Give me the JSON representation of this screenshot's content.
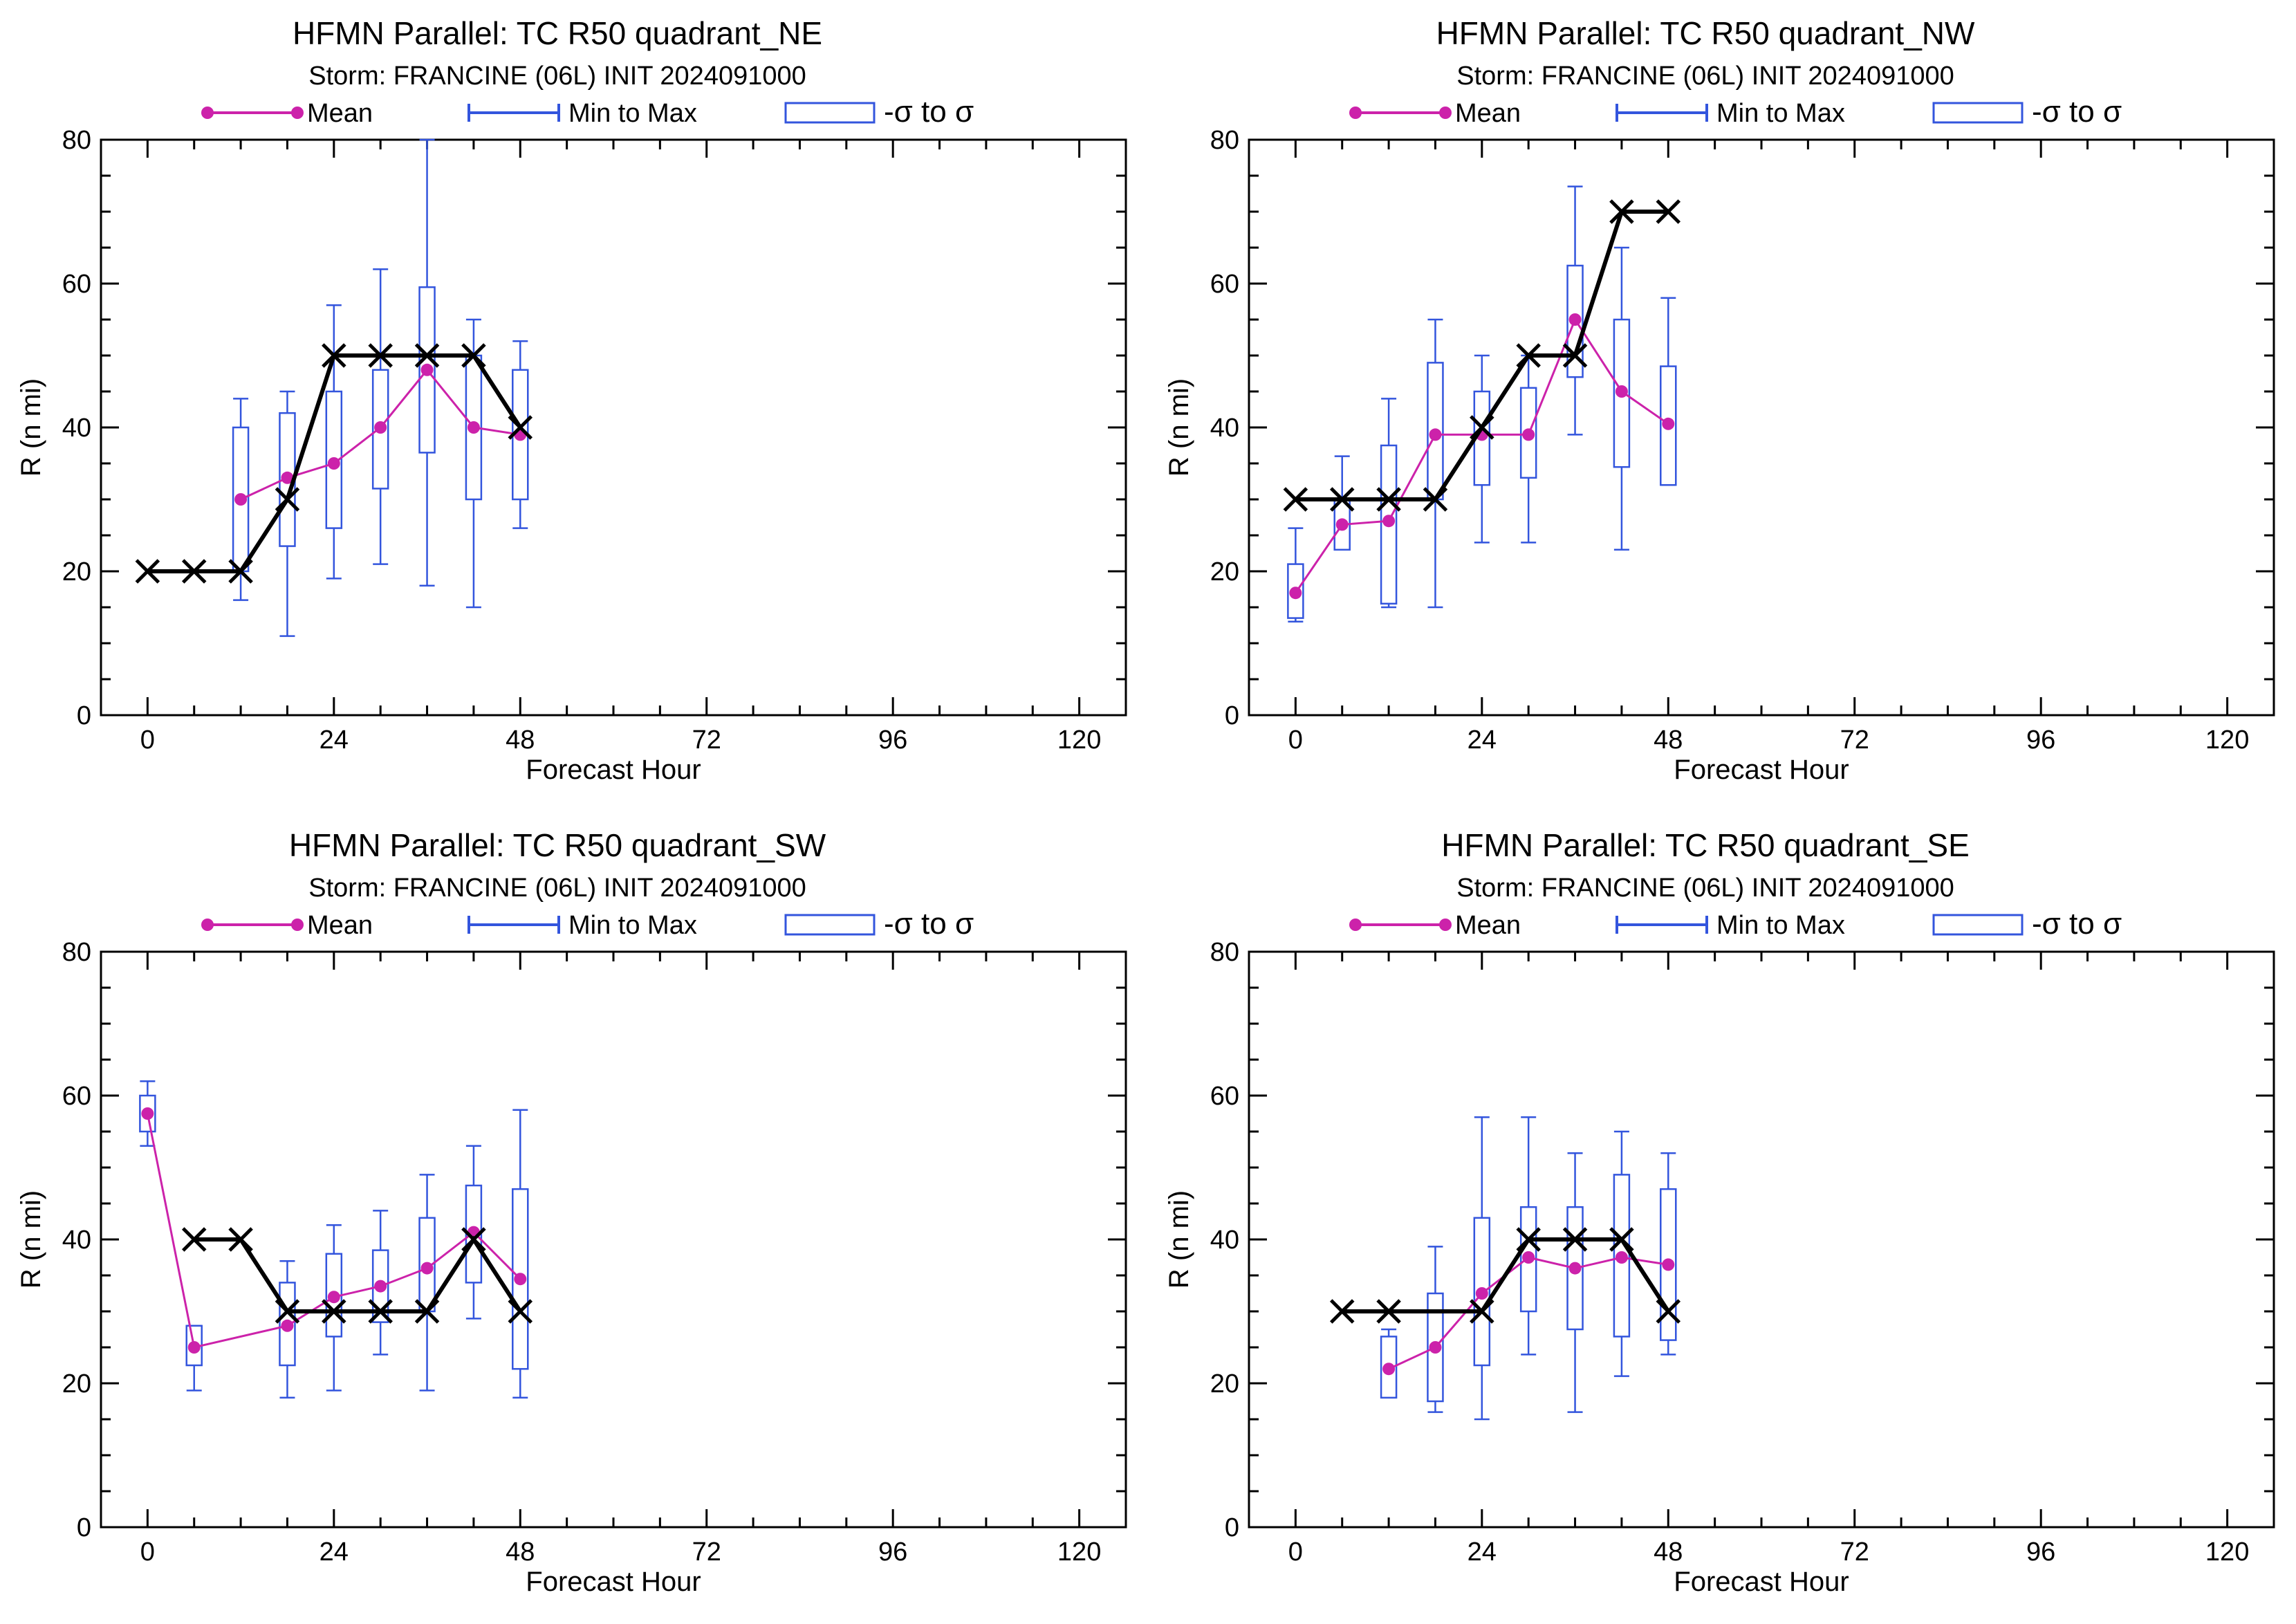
{
  "colors": {
    "mean": "#cc22aa",
    "range": "#3355dd",
    "best_track": "#000000",
    "axis": "#000000"
  },
  "legend": {
    "mean_label": "Mean",
    "range_label": "Min to Max",
    "sigma_label": "-σ to σ"
  },
  "chart_data": [
    {
      "type": "box",
      "title": "HFMN Parallel: TC  R50 quadrant_NE",
      "subtitle": "Storm: FRANCINE (06L) INIT 2024091000",
      "xlabel": "Forecast Hour",
      "ylabel": "R (n mi)",
      "xlim": [
        -6,
        126
      ],
      "ylim": [
        0,
        80
      ],
      "xticks": [
        0,
        24,
        48,
        72,
        96,
        120
      ],
      "yticks": [
        0,
        20,
        40,
        60,
        80
      ],
      "best_track": {
        "x": [
          0,
          6,
          12,
          18,
          24,
          30,
          36,
          42,
          48
        ],
        "y": [
          20,
          20,
          20,
          30,
          50,
          50,
          50,
          50,
          40
        ]
      },
      "ensemble": {
        "x": [
          12,
          18,
          24,
          30,
          36,
          42,
          48
        ],
        "mean": [
          30,
          33,
          35,
          40,
          48,
          40,
          39
        ],
        "min": [
          16,
          11,
          19,
          21,
          18,
          15,
          26
        ],
        "max": [
          44,
          45,
          57,
          62,
          80,
          55,
          52
        ],
        "sig_lo": [
          20,
          23.5,
          26,
          31.5,
          36.5,
          30,
          30
        ],
        "sig_hi": [
          40,
          42,
          45,
          48,
          59.5,
          50,
          48
        ]
      }
    },
    {
      "type": "box",
      "title": "HFMN Parallel: TC  R50 quadrant_NW",
      "subtitle": "Storm: FRANCINE (06L) INIT 2024091000",
      "xlabel": "Forecast Hour",
      "ylabel": "R (n mi)",
      "xlim": [
        -6,
        126
      ],
      "ylim": [
        0,
        80
      ],
      "xticks": [
        0,
        24,
        48,
        72,
        96,
        120
      ],
      "yticks": [
        0,
        20,
        40,
        60,
        80
      ],
      "best_track": {
        "x": [
          0,
          6,
          12,
          18,
          24,
          30,
          36,
          42,
          48
        ],
        "y": [
          30,
          30,
          30,
          30,
          40,
          50,
          50,
          70,
          70
        ]
      },
      "ensemble": {
        "x": [
          0,
          6,
          12,
          18,
          24,
          30,
          36,
          42,
          48
        ],
        "mean": [
          17,
          26.5,
          27,
          39,
          39,
          39,
          55,
          45,
          40.5
        ],
        "min": [
          13,
          23,
          15,
          15,
          24,
          24,
          39,
          23,
          32
        ],
        "max": [
          26,
          36,
          44,
          55,
          50,
          50,
          73.5,
          65,
          58
        ],
        "sig_lo": [
          13.5,
          23,
          15.5,
          30,
          32,
          33,
          47,
          34.5,
          32
        ],
        "sig_hi": [
          21,
          30,
          37.5,
          49,
          45,
          45.5,
          62.5,
          55,
          48.5
        ]
      }
    },
    {
      "type": "box",
      "title": "HFMN Parallel: TC  R50 quadrant_SW",
      "subtitle": "Storm: FRANCINE (06L) INIT 2024091000",
      "xlabel": "Forecast Hour",
      "ylabel": "R (n mi)",
      "xlim": [
        -6,
        126
      ],
      "ylim": [
        0,
        80
      ],
      "xticks": [
        0,
        24,
        48,
        72,
        96,
        120
      ],
      "yticks": [
        0,
        20,
        40,
        60,
        80
      ],
      "best_track": {
        "x": [
          6,
          12,
          18,
          24,
          30,
          36,
          42,
          48
        ],
        "y": [
          40,
          40,
          30,
          30,
          30,
          30,
          40,
          30
        ]
      },
      "ensemble": {
        "x": [
          0,
          6,
          18,
          24,
          30,
          36,
          42,
          48
        ],
        "mean": [
          57.5,
          25,
          28,
          32,
          33.5,
          36,
          41,
          34.5
        ],
        "min": [
          53,
          19,
          18,
          19,
          24,
          19,
          29,
          18
        ],
        "max": [
          62,
          28,
          37,
          42,
          44,
          49,
          53,
          58
        ],
        "sig_lo": [
          55,
          22.5,
          22.5,
          26.5,
          28.5,
          30,
          34,
          22
        ],
        "sig_hi": [
          60,
          28,
          34,
          38,
          38.5,
          43,
          47.5,
          47
        ]
      }
    },
    {
      "type": "box",
      "title": "HFMN Parallel: TC  R50 quadrant_SE",
      "subtitle": "Storm: FRANCINE (06L) INIT 2024091000",
      "xlabel": "Forecast Hour",
      "ylabel": "R (n mi)",
      "xlim": [
        -6,
        126
      ],
      "ylim": [
        0,
        80
      ],
      "xticks": [
        0,
        24,
        48,
        72,
        96,
        120
      ],
      "yticks": [
        0,
        20,
        40,
        60,
        80
      ],
      "best_track": {
        "x": [
          6,
          12,
          24,
          30,
          36,
          42,
          48
        ],
        "y": [
          30,
          30,
          30,
          40,
          40,
          40,
          30
        ]
      },
      "ensemble": {
        "x": [
          12,
          18,
          24,
          30,
          36,
          42,
          48
        ],
        "mean": [
          22,
          25,
          32.5,
          37.5,
          36,
          37.5,
          36.5
        ],
        "min": [
          18,
          16,
          15,
          24,
          16,
          21,
          24
        ],
        "max": [
          27.5,
          39,
          57,
          57,
          52,
          55,
          52
        ],
        "sig_lo": [
          18,
          17.5,
          22.5,
          30,
          27.5,
          26.5,
          26
        ],
        "sig_hi": [
          26.5,
          32.5,
          43,
          44.5,
          44.5,
          49,
          47
        ]
      }
    }
  ]
}
